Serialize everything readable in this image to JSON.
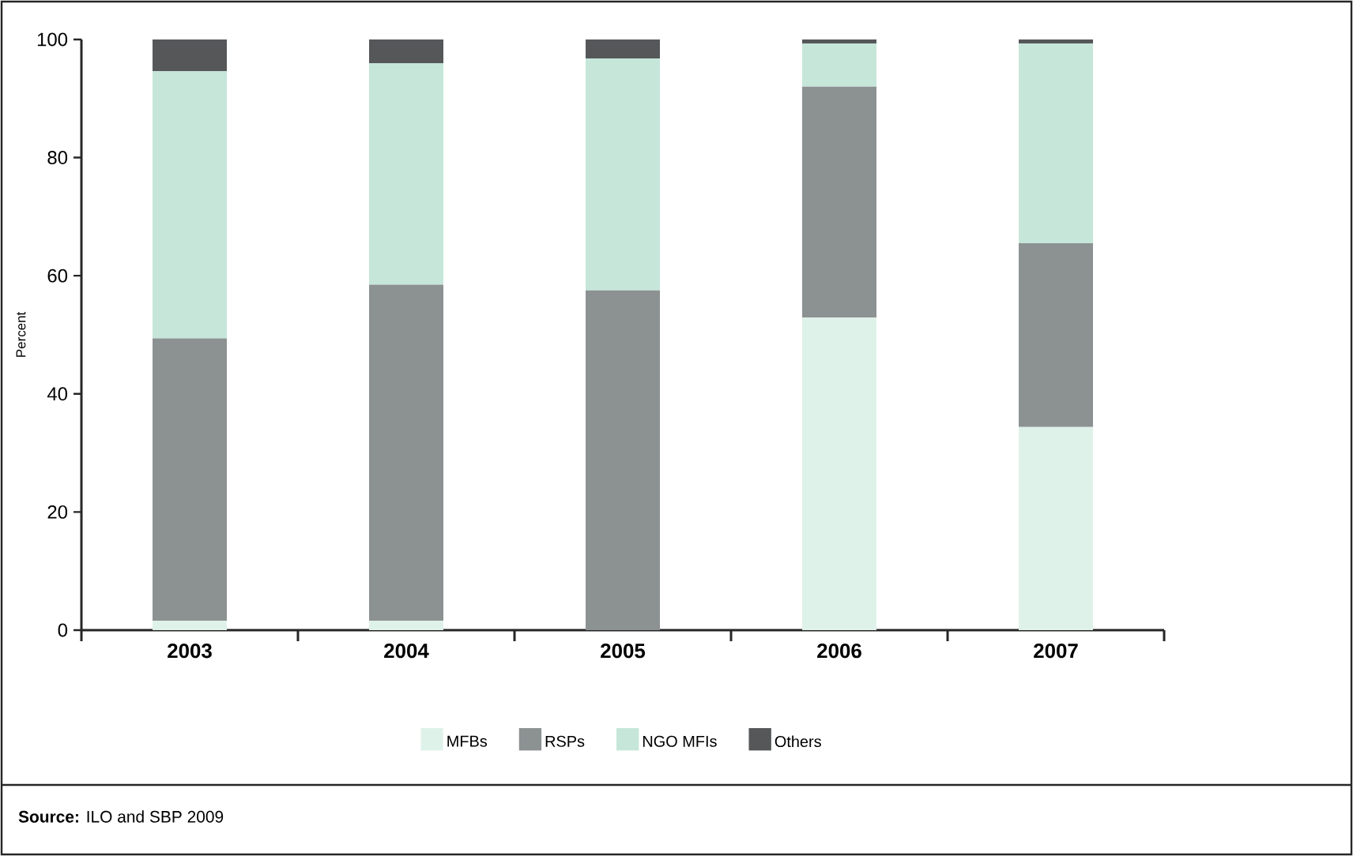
{
  "chart_data": {
    "type": "bar",
    "stacked": true,
    "ylabel": "Percent",
    "categories": [
      "2003",
      "2004",
      "2005",
      "2006",
      "2007"
    ],
    "series": [
      {
        "name": "MFBs",
        "color": "#dff2ea",
        "values": [
          1.6,
          1.6,
          0,
          52.9,
          34.4
        ]
      },
      {
        "name": "RSPs",
        "color": "#8c9192",
        "values": [
          47.8,
          56.9,
          57.5,
          39.1,
          31.1
        ]
      },
      {
        "name": "NGO MFIs",
        "color": "#c6e6da",
        "values": [
          45.2,
          37.5,
          39.3,
          7.3,
          33.8
        ]
      },
      {
        "name": "Others",
        "color": "#555759",
        "values": [
          5.4,
          4.0,
          3.2,
          0.7,
          0.7
        ]
      }
    ],
    "ylim": [
      0,
      100
    ],
    "yticks": [
      0,
      20,
      40,
      60,
      80,
      100
    ],
    "legend": "bottom",
    "annotations": [
      "**Source:** ILO and SBP 2009"
    ]
  }
}
